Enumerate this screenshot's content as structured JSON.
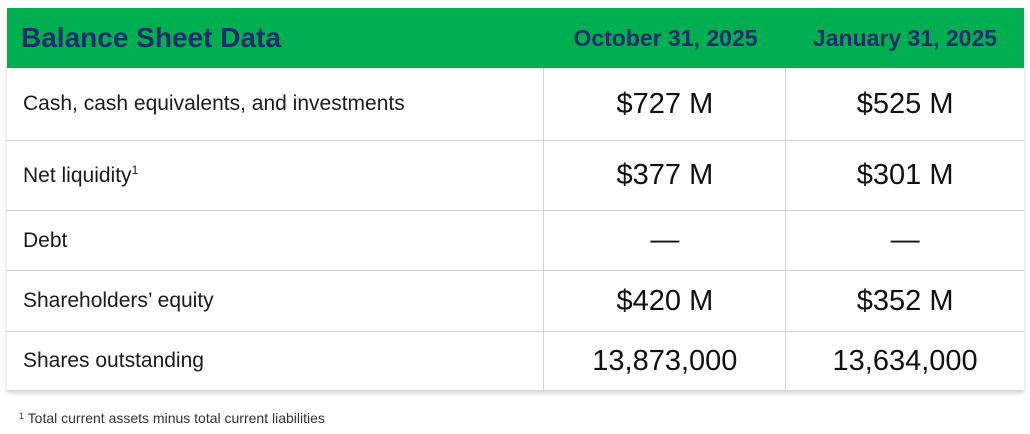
{
  "header": {
    "title": "Balance Sheet Data",
    "col1": "October 31, 2025",
    "col2": "January 31, 2025"
  },
  "rows": [
    {
      "label": "Cash, cash equivalents, and investments",
      "sup": "",
      "v1": "$727 M",
      "v2": "$525 M"
    },
    {
      "label": "Net liquidity",
      "sup": "1",
      "v1": "$377 M",
      "v2": "$301 M"
    },
    {
      "label": "Debt",
      "sup": "",
      "v1": "—",
      "v2": "—"
    },
    {
      "label": "Shareholders’ equity",
      "sup": "",
      "v1": "$420 M",
      "v2": "$352 M"
    },
    {
      "label": "Shares outstanding",
      "sup": "",
      "v1": "13,873,000",
      "v2": "13,634,000"
    }
  ],
  "footnote": {
    "marker": "1",
    "text": "Total current assets minus total current liabilities"
  },
  "colors": {
    "header_bg": "#00b050",
    "header_text": "#1f2d6b"
  }
}
